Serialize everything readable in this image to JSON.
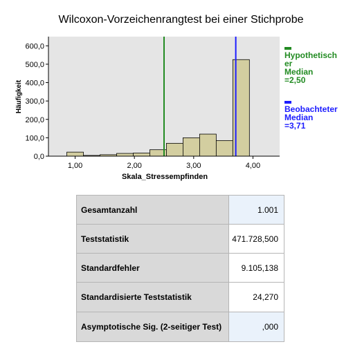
{
  "chart_data": {
    "type": "bar",
    "title": "Wilcoxon-Vorzeichenrangtest bei einer Stichprobe",
    "xlabel": "Skala_Stressempfinden",
    "ylabel": "Häufigkeit",
    "xlim": [
      0.55,
      4.45
    ],
    "ylim": [
      0,
      650
    ],
    "x_ticks": [
      1.0,
      2.0,
      3.0,
      4.0
    ],
    "x_tick_labels": [
      "1,00",
      "2,00",
      "3,00",
      "4,00"
    ],
    "y_ticks": [
      0,
      100,
      200,
      300,
      400,
      500,
      600
    ],
    "y_tick_labels": [
      "0,0",
      "100,0",
      "200,0",
      "300,0",
      "400,0",
      "500,0",
      "600,0"
    ],
    "bin_edges": [
      0.86,
      1.14,
      1.42,
      1.7,
      1.98,
      2.26,
      2.54,
      2.82,
      3.1,
      3.38,
      3.66,
      3.94
    ],
    "values": [
      22,
      4,
      8,
      15,
      17,
      35,
      70,
      100,
      120,
      85,
      525
    ],
    "bar_color": "#d3cea0",
    "plot_background": "#e5e5e5",
    "reference_lines": [
      {
        "x": 2.5,
        "color": "#228b22",
        "label_line1": "Hypothetisch",
        "label_line2": "er",
        "label_line3": "Median",
        "label_line4": "=2,50"
      },
      {
        "x": 3.71,
        "color": "#1c1cff",
        "label_line1": "Beobachteter",
        "label_line2": "Median",
        "label_line3": "=3,71"
      }
    ]
  },
  "table": {
    "rows": [
      {
        "label": "Gesamtanzahl",
        "value": "1.001"
      },
      {
        "label": "Teststatistik",
        "value": "471.728,500"
      },
      {
        "label": "Standardfehler",
        "value": "9.105,138"
      },
      {
        "label": "Standardisierte Teststatistik",
        "value": "24,270"
      },
      {
        "label": "Asymptotische Sig. (2-seitiger Test)",
        "value": ",000"
      }
    ]
  }
}
